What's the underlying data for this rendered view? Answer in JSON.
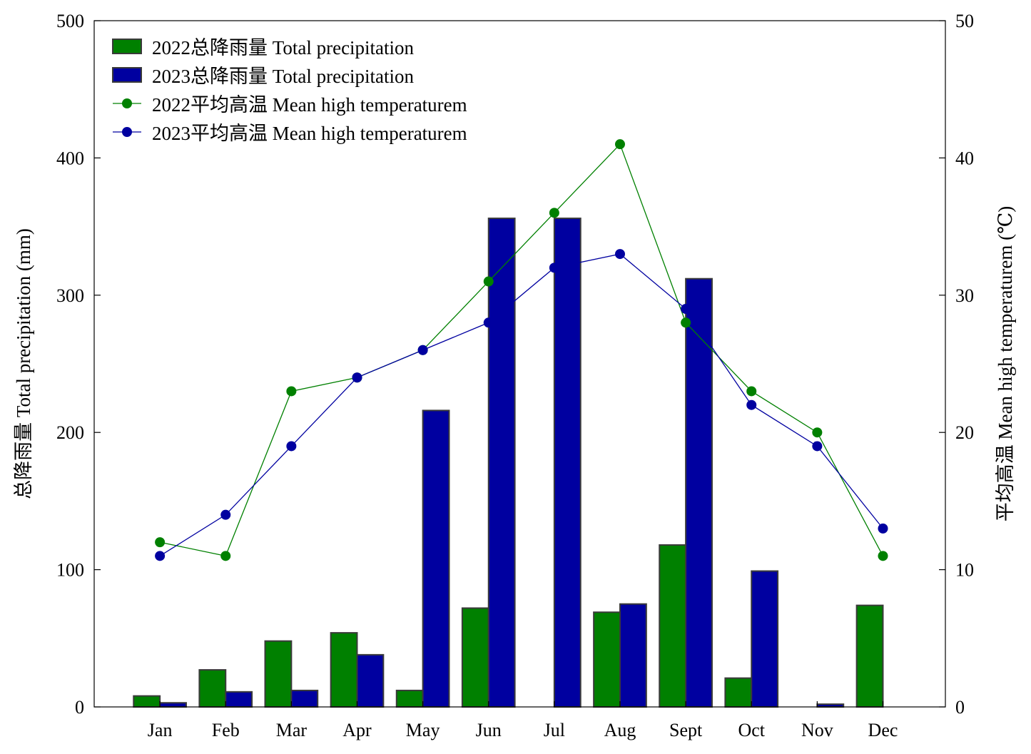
{
  "chart_data": {
    "type": "bar",
    "title": "",
    "categories": [
      "Jan",
      "Feb",
      "Mar",
      "Apr",
      "May",
      "Jun",
      "Jul",
      "Aug",
      "Sept",
      "Oct",
      "Nov",
      "Dec"
    ],
    "y_left": {
      "label": "总降雨量 Total precipitation (mm)",
      "range": [
        0,
        500
      ],
      "ticks": [
        "0",
        "100",
        "200",
        "300",
        "400",
        "500"
      ]
    },
    "y_right": {
      "label": "平均高温 Mean high temperaturem (℃)",
      "range": [
        0,
        50
      ],
      "ticks": [
        "0",
        "10",
        "20",
        "30",
        "40",
        "50"
      ]
    },
    "bar_series": [
      {
        "name": "2022总降雨量 Total precipitation",
        "color": "#008000",
        "axis": "left",
        "values": [
          8,
          27,
          48,
          54,
          12,
          72,
          0,
          69,
          118,
          21,
          0,
          74
        ]
      },
      {
        "name": "2023总降雨量 Total precipitation",
        "color": "#0000a0",
        "axis": "left",
        "values": [
          3,
          11,
          12,
          38,
          216,
          356,
          356,
          75,
          312,
          99,
          2,
          0
        ]
      }
    ],
    "line_series": [
      {
        "name": "2022平均高温 Mean high temperaturem",
        "color": "#008000",
        "axis": "right",
        "values": [
          12,
          11,
          23,
          24,
          26,
          31,
          36,
          41,
          28,
          23,
          20,
          11
        ]
      },
      {
        "name": "2023平均高温 Mean high temperaturem",
        "color": "#0000a0",
        "axis": "right",
        "values": [
          11,
          14,
          19,
          24,
          26,
          28,
          32,
          33,
          29,
          22,
          19,
          13
        ]
      }
    ],
    "legend_position": "top-left",
    "grid": false
  }
}
